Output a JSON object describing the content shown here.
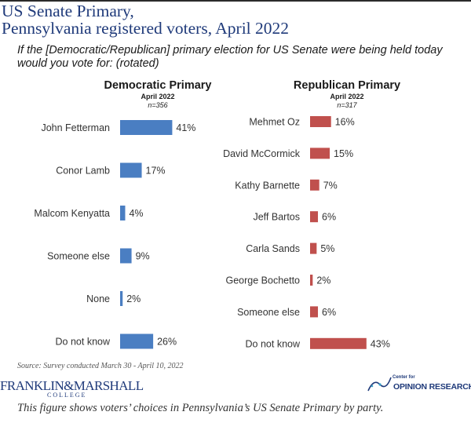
{
  "header": {
    "title_line1": "US Senate Primary,",
    "title_line2": "Pennsylvania registered voters, April 2022",
    "question": "If the [Democratic/Republican] primary election for US Senate were being held today would you vote for: (rotated)"
  },
  "chart_data": [
    {
      "type": "bar",
      "orientation": "horizontal",
      "title": "Democratic Primary",
      "subtitle": "April 2022",
      "sample": "n=356",
      "categories": [
        "John Fetterman",
        "Conor Lamb",
        "Malcom Kenyatta",
        "Someone else",
        "None",
        "Do not know"
      ],
      "values": [
        41,
        17,
        4,
        9,
        2,
        26
      ],
      "value_labels": [
        "41%",
        "17%",
        "4%",
        "9%",
        "2%",
        "26%"
      ],
      "unit": "%",
      "color": "#4a7ec2",
      "grid": false,
      "xlim": [
        0,
        45
      ]
    },
    {
      "type": "bar",
      "orientation": "horizontal",
      "title": "Republican Primary",
      "subtitle": "April 2022",
      "sample": "n=317",
      "categories": [
        "Mehmet Oz",
        "David McCormick",
        "Kathy Barnette",
        "Jeff Bartos",
        "Carla Sands",
        "George Bochetto",
        "Someone else",
        "Do not know"
      ],
      "values": [
        16,
        15,
        7,
        6,
        5,
        2,
        6,
        43
      ],
      "value_labels": [
        "16%",
        "15%",
        "7%",
        "6%",
        "5%",
        "2%",
        "6%",
        "43%"
      ],
      "unit": "%",
      "color": "#c0504d",
      "grid": false,
      "xlim": [
        0,
        45
      ]
    }
  ],
  "footer": {
    "source": "Source: Survey conducted March 30 - April 10, 2022",
    "fm_logo_main": "FRANKLIN&MARSHALL",
    "fm_logo_sub": "COLLEGE",
    "cor_logo_small": "Center for",
    "cor_logo_main": "OPINION RESEARCH",
    "caption": "This figure shows voters’ choices in Pennsylvania’s US Senate Primary by party."
  },
  "brand_color": "#1f3a7a"
}
